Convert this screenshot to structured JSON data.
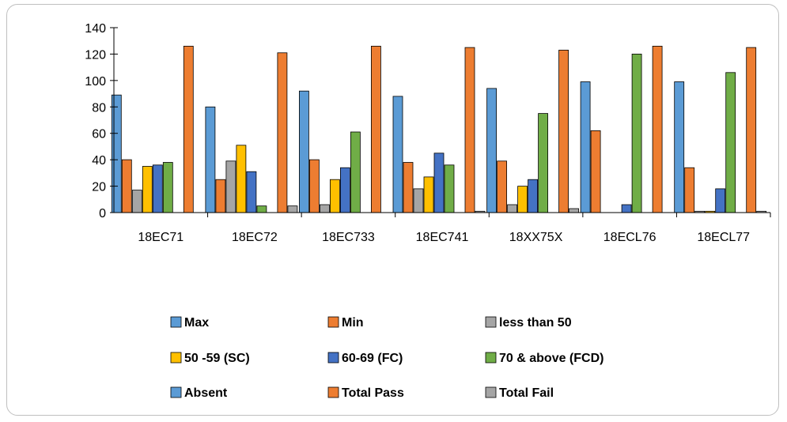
{
  "chart_data": {
    "type": "bar",
    "title": "",
    "xlabel": "",
    "ylabel": "",
    "ylim": [
      0,
      140
    ],
    "yticks": [
      0,
      20,
      40,
      60,
      80,
      100,
      120,
      140
    ],
    "grid": false,
    "legend_position": "bottom",
    "categories": [
      "18EC71",
      "18EC72",
      "18EC733",
      "18EC741",
      "18XX75X",
      "18ECL76",
      "18ECL77"
    ],
    "series": [
      {
        "name": "Max",
        "color": "#5b9bd5",
        "values": [
          89,
          80,
          92,
          88,
          94,
          99,
          99
        ]
      },
      {
        "name": "Min",
        "color": "#ed7d31",
        "values": [
          40,
          25,
          40,
          38,
          39,
          62,
          34
        ]
      },
      {
        "name": "less than 50",
        "color": "#a5a5a5",
        "values": [
          17,
          39,
          6,
          18,
          6,
          0,
          1
        ]
      },
      {
        "name": "50 -59 (SC)",
        "color": "#ffc000",
        "values": [
          35,
          51,
          25,
          27,
          20,
          0,
          1
        ]
      },
      {
        "name": "60-69 (FC)",
        "color": "#4472c4",
        "values": [
          36,
          31,
          34,
          45,
          25,
          6,
          18
        ]
      },
      {
        "name": "70 & above (FCD)",
        "color": "#70ad47",
        "values": [
          38,
          5,
          61,
          36,
          75,
          120,
          106
        ]
      },
      {
        "name": "Absent",
        "color": "#5b9bd5",
        "values": [
          0,
          0,
          0,
          0,
          0,
          0,
          0
        ]
      },
      {
        "name": "Total Pass",
        "color": "#ed7d31",
        "values": [
          126,
          121,
          126,
          125,
          123,
          126,
          125
        ]
      },
      {
        "name": "Total Fail",
        "color": "#a5a5a5",
        "values": [
          0,
          5,
          0,
          1,
          3,
          0,
          1
        ]
      }
    ]
  }
}
